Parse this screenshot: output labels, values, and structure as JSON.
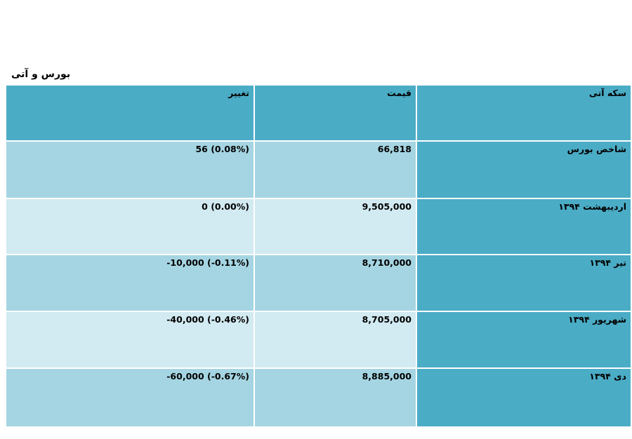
{
  "caption": "بورس و آتی",
  "headers": {
    "change": "تغییر",
    "price": "قیمت",
    "name": "سکه آتی"
  },
  "rows": [
    {
      "name": "شاخص بورس",
      "price": "66,818",
      "change": "56 (0.08%)"
    },
    {
      "name": "اردیبهشت ۱۳۹۴",
      "price": "9,505,000",
      "change": "0 (0.00%)"
    },
    {
      "name": "تیر ۱۳۹۴",
      "price": "8,710,000",
      "change": "-10,000 (-0.11%)"
    },
    {
      "name": "شهریور ۱۳۹۴",
      "price": "8,705,000",
      "change": "-40,000 (-0.46%)"
    },
    {
      "name": "دی ۱۳۹۴",
      "price": "8,885,000",
      "change": "-60,000 (-0.67%)"
    }
  ],
  "colors": {
    "header": "#4BACC6",
    "band_dark": "#A5D5E2",
    "band_light": "#D2EAF1"
  }
}
